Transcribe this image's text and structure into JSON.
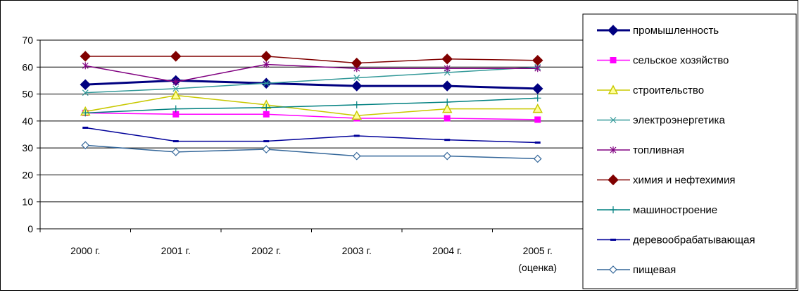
{
  "chart_data": {
    "type": "line",
    "categories": [
      "2000 г.",
      "2001 г.",
      "2002 г.",
      "2003 г.",
      "2004 г.",
      "2005 г.|(оценка)"
    ],
    "ylim": [
      0,
      70
    ],
    "yticks": [
      0,
      10,
      20,
      30,
      40,
      50,
      60,
      70
    ],
    "grid": true,
    "legend_position": "right",
    "series": [
      {
        "name": "промышленность",
        "values": [
          53.5,
          55,
          54,
          53,
          53,
          52
        ],
        "color": "#000080",
        "marker": "diamond",
        "width": 3
      },
      {
        "name": "сельское хозяйство",
        "values": [
          43,
          42.5,
          42.5,
          41,
          41,
          40.5
        ],
        "color": "#FF00FF",
        "marker": "square",
        "width": 1.5
      },
      {
        "name": "строительство",
        "values": [
          43.5,
          49.5,
          46,
          42,
          44.5,
          44.5
        ],
        "color": "#C8C800",
        "marker": "triangle",
        "width": 1.5
      },
      {
        "name": "электроэнергетика",
        "values": [
          50.5,
          52,
          54,
          56,
          58,
          60
        ],
        "color": "#339999",
        "marker": "x",
        "width": 1.5
      },
      {
        "name": "топливная",
        "values": [
          60.5,
          54.5,
          61,
          59.5,
          59.5,
          59.5
        ],
        "color": "#800080",
        "marker": "star",
        "width": 1.5
      },
      {
        "name": "химия и нефтехимия",
        "values": [
          64,
          64,
          64,
          61.5,
          63,
          62.5
        ],
        "color": "#800000",
        "marker": "diamond",
        "width": 1.5
      },
      {
        "name": "машиностроение",
        "values": [
          43,
          44.5,
          45,
          46,
          47,
          48.5
        ],
        "color": "#008080",
        "marker": "plus",
        "width": 1.5
      },
      {
        "name": "деревообрабатывающая",
        "values": [
          37.5,
          32.5,
          32.5,
          34.5,
          33,
          32
        ],
        "color": "#000099",
        "marker": "dash",
        "width": 1.5
      },
      {
        "name": "пищевая",
        "values": [
          31,
          28.5,
          29.5,
          27,
          27,
          26
        ],
        "color": "#336699",
        "marker": "diamond-open",
        "width": 1.5
      }
    ]
  }
}
